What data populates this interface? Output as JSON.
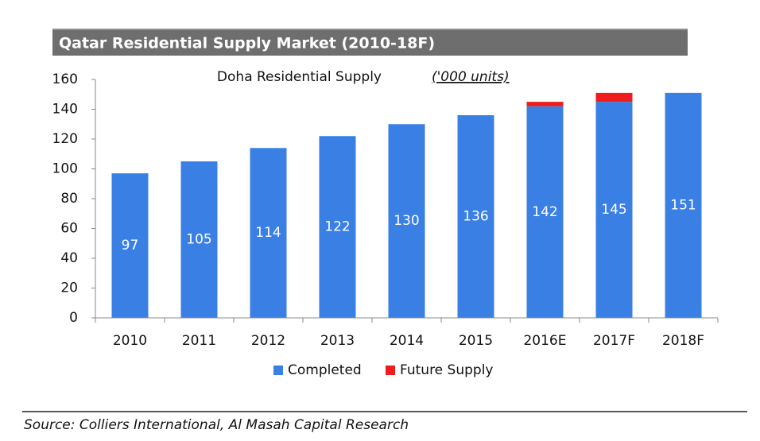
{
  "header": {
    "title": "Qatar Residential Supply Market (2010-18F)"
  },
  "chart_data": {
    "type": "stacked_bar",
    "subtitle": "Doha Residential Supply",
    "subtitle_units": "('000 units)",
    "categories": [
      "2010",
      "2011",
      "2012",
      "2013",
      "2014",
      "2015",
      "2016E",
      "2017F",
      "2018F"
    ],
    "series": [
      {
        "name": "Completed",
        "color": "#3a80e4",
        "values": [
          97,
          105,
          114,
          122,
          130,
          136,
          142,
          145,
          151
        ]
      },
      {
        "name": "Future Supply",
        "color": "#ee1c1c",
        "values": [
          0,
          0,
          0,
          0,
          0,
          0,
          3,
          6,
          0
        ]
      }
    ],
    "ylim": [
      0,
      160
    ],
    "yticks": [
      0,
      20,
      40,
      60,
      80,
      100,
      120,
      140,
      160
    ],
    "value_labels_series": 0,
    "legend": "bottom"
  },
  "footer": {
    "source": "Source: Colliers International, Al Masah Capital Research"
  }
}
